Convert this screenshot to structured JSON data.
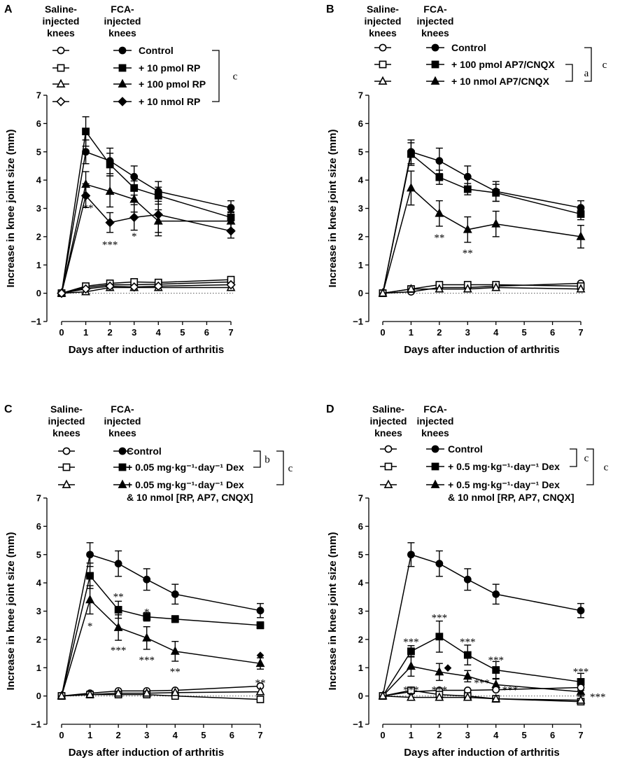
{
  "figure": {
    "column_headers": {
      "saline": "Saline-\ninjected\nknees",
      "fca": "FCA-\ninjected\nknees"
    },
    "colors": {
      "ink": "#000000",
      "zero_line": "#555555"
    }
  },
  "chart_data": [
    {
      "panel": "A",
      "type": "line",
      "xlabel": "Days after induction of arthritis",
      "ylabel": "Increase in knee joint size (mm)",
      "xlim": [
        0,
        7
      ],
      "ylim": [
        -1,
        7
      ],
      "xticks": [
        0,
        1,
        2,
        3,
        4,
        5,
        6,
        7
      ],
      "yticks": [
        -1,
        0,
        1,
        2,
        3,
        4,
        5,
        6,
        7
      ],
      "x": [
        0,
        1,
        2,
        3,
        4,
        7
      ],
      "legend": [
        {
          "label": "Control",
          "shape": "circle"
        },
        {
          "label": "+ 10 pmol RP",
          "shape": "square"
        },
        {
          "label": "+ 100 pmol RP",
          "shape": "triangle"
        },
        {
          "label": "+ 10 nmol RP",
          "shape": "diamond"
        }
      ],
      "brackets": [
        {
          "from": 0,
          "to": 3,
          "label": "c"
        }
      ],
      "series": [
        {
          "name": "Control",
          "group": "FCA",
          "shape": "circle",
          "filled": true,
          "values": [
            0,
            5.0,
            4.68,
            4.12,
            3.6,
            3.02
          ],
          "errors": [
            0,
            0.42,
            0.45,
            0.38,
            0.35,
            0.25
          ]
        },
        {
          "name": "+ 10 pmol RP",
          "group": "FCA",
          "shape": "square",
          "filled": true,
          "values": [
            0,
            5.72,
            4.55,
            3.72,
            3.45,
            2.68
          ],
          "errors": [
            0,
            0.52,
            0.4,
            0.25,
            0.3,
            0.2
          ]
        },
        {
          "name": "+ 100 pmol RP",
          "group": "FCA",
          "shape": "triangle",
          "filled": true,
          "values": [
            0,
            3.85,
            3.6,
            3.32,
            2.55,
            2.55
          ],
          "errors": [
            0,
            0.45,
            0.55,
            0.45,
            0.4,
            0.3
          ]
        },
        {
          "name": "+ 10 nmol RP",
          "group": "FCA",
          "shape": "diamond",
          "filled": true,
          "values": [
            0,
            3.45,
            2.5,
            2.68,
            2.78,
            2.2
          ],
          "errors": [
            0,
            0.42,
            0.35,
            0.45,
            0.75,
            0.25
          ]
        },
        {
          "name": "Control",
          "group": "Saline",
          "shape": "circle",
          "filled": false,
          "values": [
            0,
            0.2,
            0.3,
            0.3,
            0.32,
            0.4
          ],
          "errors": [
            0,
            0.06,
            0.06,
            0.06,
            0.06,
            0.06
          ]
        },
        {
          "name": "+ 10 pmol RP",
          "group": "Saline",
          "shape": "square",
          "filled": false,
          "values": [
            0,
            0.25,
            0.35,
            0.4,
            0.38,
            0.48
          ],
          "errors": [
            0,
            0.06,
            0.06,
            0.06,
            0.06,
            0.06
          ]
        },
        {
          "name": "+ 100 pmol RP",
          "group": "Saline",
          "shape": "triangle",
          "filled": false,
          "values": [
            0,
            0.05,
            0.2,
            0.2,
            0.2,
            0.2
          ],
          "errors": [
            0,
            0.05,
            0.05,
            0.05,
            0.05,
            0.05
          ]
        },
        {
          "name": "+ 10 nmol RP",
          "group": "Saline",
          "shape": "diamond",
          "filled": false,
          "values": [
            0,
            0.15,
            0.25,
            0.22,
            0.25,
            0.3
          ],
          "errors": [
            0,
            0.05,
            0.05,
            0.05,
            0.05,
            0.05
          ]
        }
      ],
      "annotations": [
        {
          "text": "**",
          "x": 1.1,
          "y": 3.1
        },
        {
          "text": "***",
          "x": 2.0,
          "y": 1.8
        },
        {
          "text": "*",
          "x": 3.0,
          "y": 2.1
        }
      ]
    },
    {
      "panel": "B",
      "type": "line",
      "xlabel": "Days after induction of arthritis",
      "ylabel": "Increase in knee joint size (mm)",
      "xlim": [
        0,
        7
      ],
      "ylim": [
        -1,
        7
      ],
      "xticks": [
        0,
        1,
        2,
        3,
        4,
        5,
        6,
        7
      ],
      "yticks": [
        -1,
        0,
        1,
        2,
        3,
        4,
        5,
        6,
        7
      ],
      "x": [
        0,
        1,
        2,
        3,
        4,
        7
      ],
      "legend": [
        {
          "label": "Control",
          "shape": "circle"
        },
        {
          "label": "+ 100 pmol AP7/CNQX",
          "shape": "square"
        },
        {
          "label": "+ 10 nmol AP7/CNQX",
          "shape": "triangle"
        }
      ],
      "brackets": [
        {
          "from": 1,
          "to": 2,
          "label": "a"
        },
        {
          "from": 0,
          "to": 2,
          "label": "c"
        }
      ],
      "series": [
        {
          "name": "Control",
          "group": "FCA",
          "shape": "circle",
          "filled": true,
          "values": [
            0,
            5.0,
            4.68,
            4.12,
            3.6,
            3.02
          ],
          "errors": [
            0,
            0.42,
            0.45,
            0.38,
            0.35,
            0.25
          ]
        },
        {
          "name": "+ 100 pmol AP7/CNQX",
          "group": "FCA",
          "shape": "square",
          "filled": true,
          "values": [
            0,
            4.92,
            4.1,
            3.68,
            3.55,
            2.8
          ],
          "errors": [
            0,
            0.4,
            0.25,
            0.2,
            0.3,
            0.2
          ]
        },
        {
          "name": "+ 10 nmol AP7/CNQX",
          "group": "FCA",
          "shape": "triangle",
          "filled": true,
          "values": [
            0,
            3.72,
            2.82,
            2.25,
            2.45,
            2.0
          ],
          "errors": [
            0,
            0.6,
            0.45,
            0.45,
            0.45,
            0.4
          ]
        },
        {
          "name": "Control",
          "group": "Saline",
          "shape": "circle",
          "filled": false,
          "values": [
            0,
            0.05,
            0.2,
            0.2,
            0.25,
            0.35
          ],
          "errors": [
            0,
            0.05,
            0.05,
            0.05,
            0.05,
            0.05
          ]
        },
        {
          "name": "+ 100 pmol AP7/CNQX",
          "group": "Saline",
          "shape": "square",
          "filled": false,
          "values": [
            0,
            0.15,
            0.3,
            0.3,
            0.3,
            0.25
          ],
          "errors": [
            0,
            0.05,
            0.05,
            0.05,
            0.05,
            0.05
          ]
        },
        {
          "name": "+ 10 nmol AP7/CNQX",
          "group": "Saline",
          "shape": "triangle",
          "filled": false,
          "values": [
            0,
            0.15,
            0.15,
            0.15,
            0.2,
            0.15
          ],
          "errors": [
            0,
            0.05,
            0.05,
            0.05,
            0.05,
            0.05
          ]
        }
      ],
      "annotations": [
        {
          "text": "**",
          "x": 2.0,
          "y": 2.05
        },
        {
          "text": "**",
          "x": 3.0,
          "y": 1.5
        }
      ]
    },
    {
      "panel": "C",
      "type": "line",
      "xlabel": "Days after induction of arthritis",
      "ylabel": "Increase in knee joint size (mm)",
      "xlim": [
        0,
        7
      ],
      "ylim": [
        -1,
        7
      ],
      "xticks": [
        0,
        1,
        2,
        3,
        4,
        5,
        6,
        7
      ],
      "yticks": [
        -1,
        0,
        1,
        2,
        3,
        4,
        5,
        6,
        7
      ],
      "x": [
        0,
        1,
        2,
        3,
        4,
        7
      ],
      "legend": [
        {
          "label": "Control",
          "shape": "circle"
        },
        {
          "label": "+ 0.05 mg·kg⁻¹·day⁻¹ Dex",
          "shape": "square"
        },
        {
          "label": "+ 0.05 mg·kg⁻¹·day⁻¹ Dex",
          "label2": "& 10 nmol [RP, AP7, CNQX]",
          "shape": "triangle"
        }
      ],
      "brackets": [
        {
          "from": 0,
          "to": 1,
          "label": "b"
        },
        {
          "from": 0,
          "to": 2,
          "label": "c"
        }
      ],
      "series": [
        {
          "name": "Control",
          "group": "FCA",
          "shape": "circle",
          "filled": true,
          "values": [
            0,
            5.0,
            4.68,
            4.12,
            3.6,
            3.02
          ],
          "errors": [
            0,
            0.42,
            0.45,
            0.38,
            0.35,
            0.25
          ]
        },
        {
          "name": "+ 0.05 mg·kg⁻¹·day⁻¹ Dex",
          "group": "FCA",
          "shape": "square",
          "filled": true,
          "values": [
            0,
            4.25,
            3.05,
            2.8,
            2.72,
            2.5
          ],
          "errors": [
            0,
            0.45,
            0.3,
            0.15,
            0.12,
            0.12
          ]
        },
        {
          "name": "+ 0.05 mg·kg⁻¹·day⁻¹ Dex & 10 nmol [RP, AP7, CNQX]",
          "group": "FCA",
          "shape": "triangle",
          "filled": true,
          "values": [
            0,
            3.4,
            2.42,
            2.05,
            1.58,
            1.15
          ],
          "errors": [
            0,
            0.5,
            0.45,
            0.4,
            0.35,
            0.2
          ]
        },
        {
          "name": "Control",
          "group": "Saline",
          "shape": "circle",
          "filled": false,
          "values": [
            0,
            0.1,
            0.18,
            0.18,
            0.2,
            0.35
          ],
          "errors": [
            0,
            0.05,
            0.05,
            0.05,
            0.05,
            0.05
          ]
        },
        {
          "name": "+ 0.05 mg·kg⁻¹·day⁻¹ Dex",
          "group": "Saline",
          "shape": "square",
          "filled": false,
          "values": [
            0,
            0.05,
            0.05,
            0.05,
            0.0,
            -0.12
          ],
          "errors": [
            0,
            0.05,
            0.05,
            0.05,
            0.05,
            0.05
          ]
        },
        {
          "name": "+ 0.05 mg·kg⁻¹·day⁻¹ Dex & 10 nmol [RP, AP7, CNQX]",
          "group": "Saline",
          "shape": "triangle",
          "filled": false,
          "values": [
            0,
            0.05,
            0.1,
            0.1,
            0.12,
            0.15
          ],
          "errors": [
            0,
            0.05,
            0.05,
            0.05,
            0.05,
            0.05
          ]
        }
      ],
      "annotations": [
        {
          "text": "*",
          "x": 1.0,
          "y": 2.55
        },
        {
          "text": "**",
          "x": 2.0,
          "y": 3.6
        },
        {
          "text": "***",
          "x": 2.0,
          "y": 1.7
        },
        {
          "text": "*",
          "x": 3.0,
          "y": 3.05
        },
        {
          "text": "***",
          "x": 3.0,
          "y": 1.35
        },
        {
          "text": "**",
          "x": 4.0,
          "y": 0.95
        },
        {
          "text": "◆",
          "x": 7.0,
          "y": 1.55
        },
        {
          "text": "**",
          "x": 7.0,
          "y": 0.55
        }
      ]
    },
    {
      "panel": "D",
      "type": "line",
      "xlabel": "Days after induction of arthritis",
      "ylabel": "Increase in knee joint size (mm)",
      "xlim": [
        0,
        7
      ],
      "ylim": [
        -1,
        7
      ],
      "xticks": [
        0,
        1,
        2,
        3,
        4,
        5,
        6,
        7
      ],
      "yticks": [
        -1,
        0,
        1,
        2,
        3,
        4,
        5,
        6,
        7
      ],
      "x": [
        0,
        1,
        2,
        3,
        4,
        7
      ],
      "legend": [
        {
          "label": "Control",
          "shape": "circle"
        },
        {
          "label": "+ 0.5 mg·kg⁻¹·day⁻¹ Dex",
          "shape": "square"
        },
        {
          "label": "+ 0.5 mg·kg⁻¹·day⁻¹ Dex",
          "label2": "& 10 nmol [RP, AP7, CNQX]",
          "shape": "triangle"
        }
      ],
      "brackets": [
        {
          "from": 0,
          "to": 1,
          "label": "c"
        },
        {
          "from": 0,
          "to": 2,
          "label": "c"
        }
      ],
      "series": [
        {
          "name": "Control",
          "group": "FCA",
          "shape": "circle",
          "filled": true,
          "values": [
            0,
            5.0,
            4.68,
            4.12,
            3.6,
            3.02
          ],
          "errors": [
            0,
            0.42,
            0.45,
            0.38,
            0.35,
            0.25
          ]
        },
        {
          "name": "+ 0.5 mg·kg⁻¹·day⁻¹ Dex",
          "group": "FCA",
          "shape": "square",
          "filled": true,
          "values": [
            0,
            1.58,
            2.1,
            1.45,
            0.92,
            0.5
          ],
          "errors": [
            0,
            0.2,
            0.55,
            0.35,
            0.3,
            0.3
          ]
        },
        {
          "name": "+ 0.5 mg·kg⁻¹·day⁻¹ Dex & 10 nmol [RP, AP7, CNQX]",
          "group": "FCA",
          "shape": "triangle",
          "filled": true,
          "values": [
            0,
            1.05,
            0.85,
            0.7,
            0.4,
            0.15
          ],
          "errors": [
            0,
            0.35,
            0.3,
            0.2,
            0.2,
            0.15
          ]
        },
        {
          "name": "Control",
          "group": "Saline",
          "shape": "circle",
          "filled": false,
          "values": [
            0,
            0.15,
            0.2,
            0.2,
            0.22,
            0.3
          ],
          "errors": [
            0,
            0.05,
            0.05,
            0.05,
            0.05,
            0.05
          ]
        },
        {
          "name": "+ 0.5 mg·kg⁻¹·day⁻¹ Dex",
          "group": "Saline",
          "shape": "square",
          "filled": false,
          "values": [
            0,
            0.2,
            0.05,
            0.0,
            -0.1,
            -0.2
          ],
          "errors": [
            0,
            0.05,
            0.05,
            0.05,
            0.05,
            0.05
          ]
        },
        {
          "name": "+ 0.5 mg·kg⁻¹·day⁻¹ Dex & 10 nmol [RP, AP7, CNQX]",
          "group": "Saline",
          "shape": "triangle",
          "filled": false,
          "values": [
            0,
            -0.05,
            -0.05,
            -0.05,
            -0.1,
            -0.15
          ],
          "errors": [
            0,
            0.05,
            0.05,
            0.05,
            0.05,
            0.05
          ]
        }
      ],
      "annotations": [
        {
          "text": "***",
          "x": 1.0,
          "y": 2.0
        },
        {
          "text": "***",
          "x": 1.0,
          "y": 0.3
        },
        {
          "text": "***",
          "x": 2.0,
          "y": 2.85
        },
        {
          "text": "◆",
          "x": 2.3,
          "y": 1.1
        },
        {
          "text": "***",
          "x": 2.0,
          "y": 0.3
        },
        {
          "text": "***",
          "x": 3.0,
          "y": 2.0
        },
        {
          "text": "***",
          "x": 3.5,
          "y": 0.55
        },
        {
          "text": "***",
          "x": 4.0,
          "y": 1.35
        },
        {
          "text": "***",
          "x": 4.5,
          "y": 0.3
        },
        {
          "text": "***",
          "x": 7.0,
          "y": 0.95
        },
        {
          "text": "***",
          "x": 7.6,
          "y": 0.05
        }
      ]
    }
  ]
}
